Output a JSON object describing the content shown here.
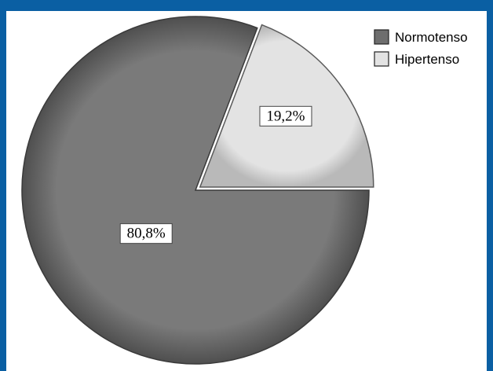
{
  "chart_data": {
    "type": "pie",
    "title": "",
    "slices": [
      {
        "name": "Normotenso",
        "value": 80.8,
        "label": "80,8%",
        "color": "#7a7a7a"
      },
      {
        "name": "Hipertenso",
        "value": 19.2,
        "label": "19,2%",
        "color": "#e3e3e3"
      }
    ],
    "legend_placement": "top-right",
    "legend": [
      "Normotenso",
      "Hipertenso"
    ]
  }
}
